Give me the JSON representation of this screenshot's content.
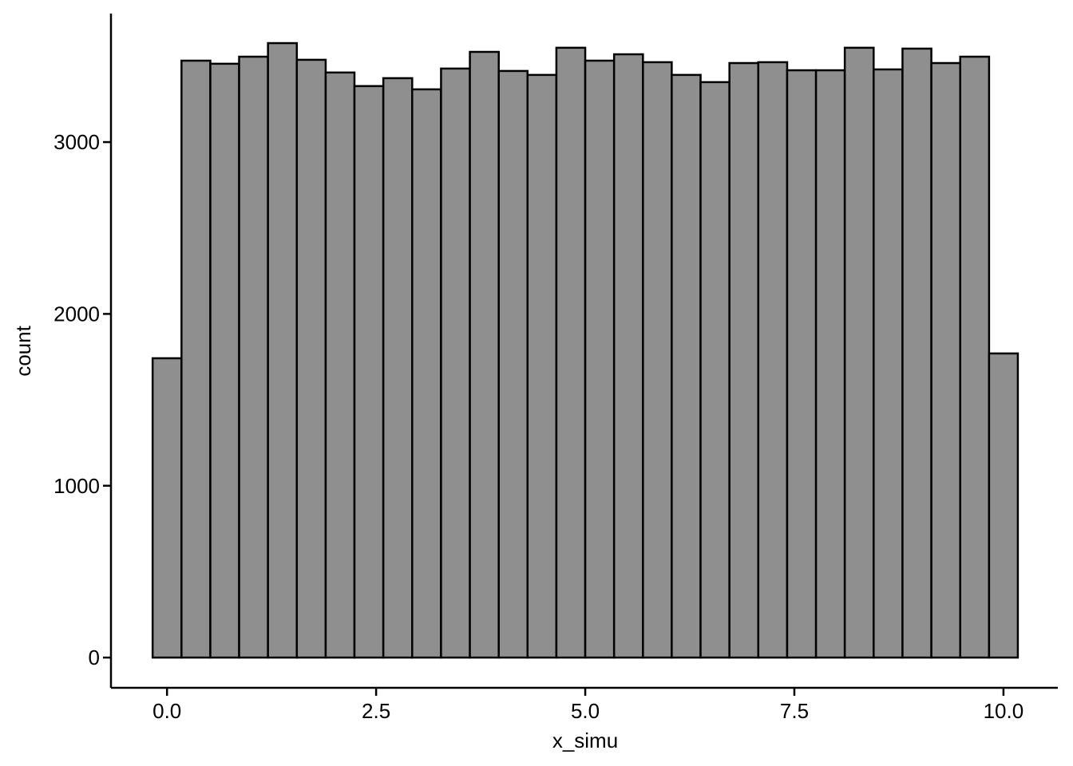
{
  "chart_data": {
    "type": "histogram",
    "x_label": "x_simu",
    "y_label": "count",
    "bins": [
      -0.172,
      0.173,
      0.518,
      0.862,
      1.207,
      1.552,
      1.897,
      2.241,
      2.586,
      2.931,
      3.276,
      3.621,
      3.966,
      4.31,
      4.655,
      5.0,
      5.345,
      5.69,
      6.034,
      6.379,
      6.724,
      7.069,
      7.414,
      7.759,
      8.103,
      8.448,
      8.793,
      9.138,
      9.483,
      9.828,
      10.172
    ],
    "counts": [
      1742,
      3474,
      3456,
      3497,
      3576,
      3479,
      3405,
      3326,
      3372,
      3307,
      3428,
      3525,
      3414,
      3391,
      3549,
      3474,
      3511,
      3465,
      3391,
      3349,
      3460,
      3465,
      3418,
      3418,
      3549,
      3423,
      3544,
      3460,
      3497,
      1770
    ],
    "color": "#8f8f8f",
    "edge_color": "#000000",
    "xlim": [
      -0.67,
      10.65
    ],
    "ylim": [
      -176,
      3748
    ],
    "xticks": [
      {
        "value": 0,
        "label": "0.0"
      },
      2.5,
      {
        "value": 5,
        "label": "5.0"
      },
      7.5,
      {
        "value": 10,
        "label": "10.0"
      }
    ],
    "yticks": [
      0,
      1000,
      2000,
      3000
    ]
  }
}
